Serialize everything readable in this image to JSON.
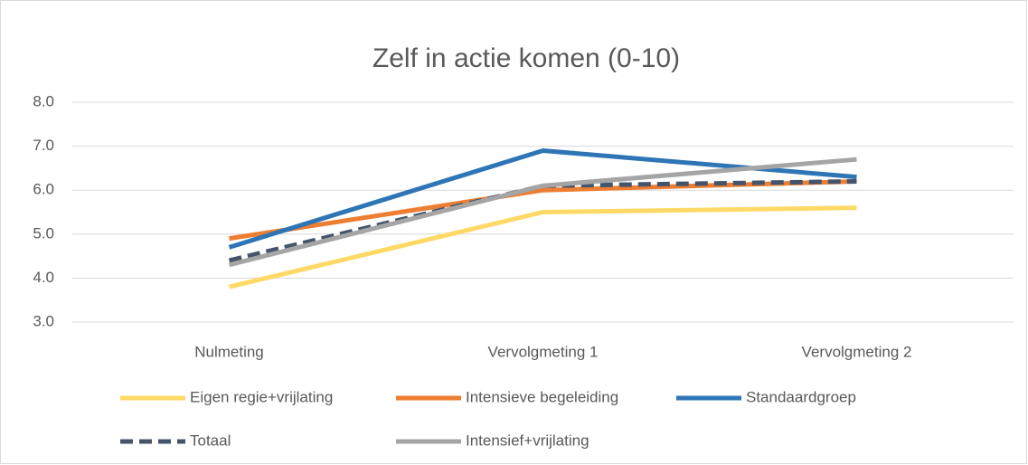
{
  "chart_data": {
    "type": "line",
    "title": "Zelf in actie komen (0-10)",
    "categories": [
      "Nulmeting",
      "Vervolgmeting 1",
      "Vervolgmeting 2"
    ],
    "series": [
      {
        "name": "Eigen regie+vrijlating",
        "color": "#ffd966",
        "values": [
          3.8,
          5.5,
          5.6
        ]
      },
      {
        "name": "Intensieve begeleiding",
        "color": "#ed7d31",
        "values": [
          4.9,
          6.0,
          6.2
        ]
      },
      {
        "name": "Standaardgroep",
        "color": "#2e75b6",
        "values": [
          4.7,
          6.9,
          6.3
        ]
      },
      {
        "name": "Totaal",
        "color": "#44546a",
        "dashed": true,
        "values": [
          4.4,
          6.1,
          6.2
        ]
      },
      {
        "name": "Intensief+vrijlating",
        "color": "#a5a5a5",
        "values": [
          4.3,
          6.1,
          6.7
        ]
      }
    ],
    "ylim": [
      3,
      8
    ],
    "yticks": [
      {
        "value": 3,
        "label": "3.0"
      },
      {
        "value": 4,
        "label": "4.0"
      },
      {
        "value": 5,
        "label": "5.0"
      },
      {
        "value": 6,
        "label": "6.0"
      },
      {
        "value": 7,
        "label": "7.0"
      },
      {
        "value": 8,
        "label": "8.0"
      }
    ],
    "grid": true,
    "legend": "bottom"
  }
}
